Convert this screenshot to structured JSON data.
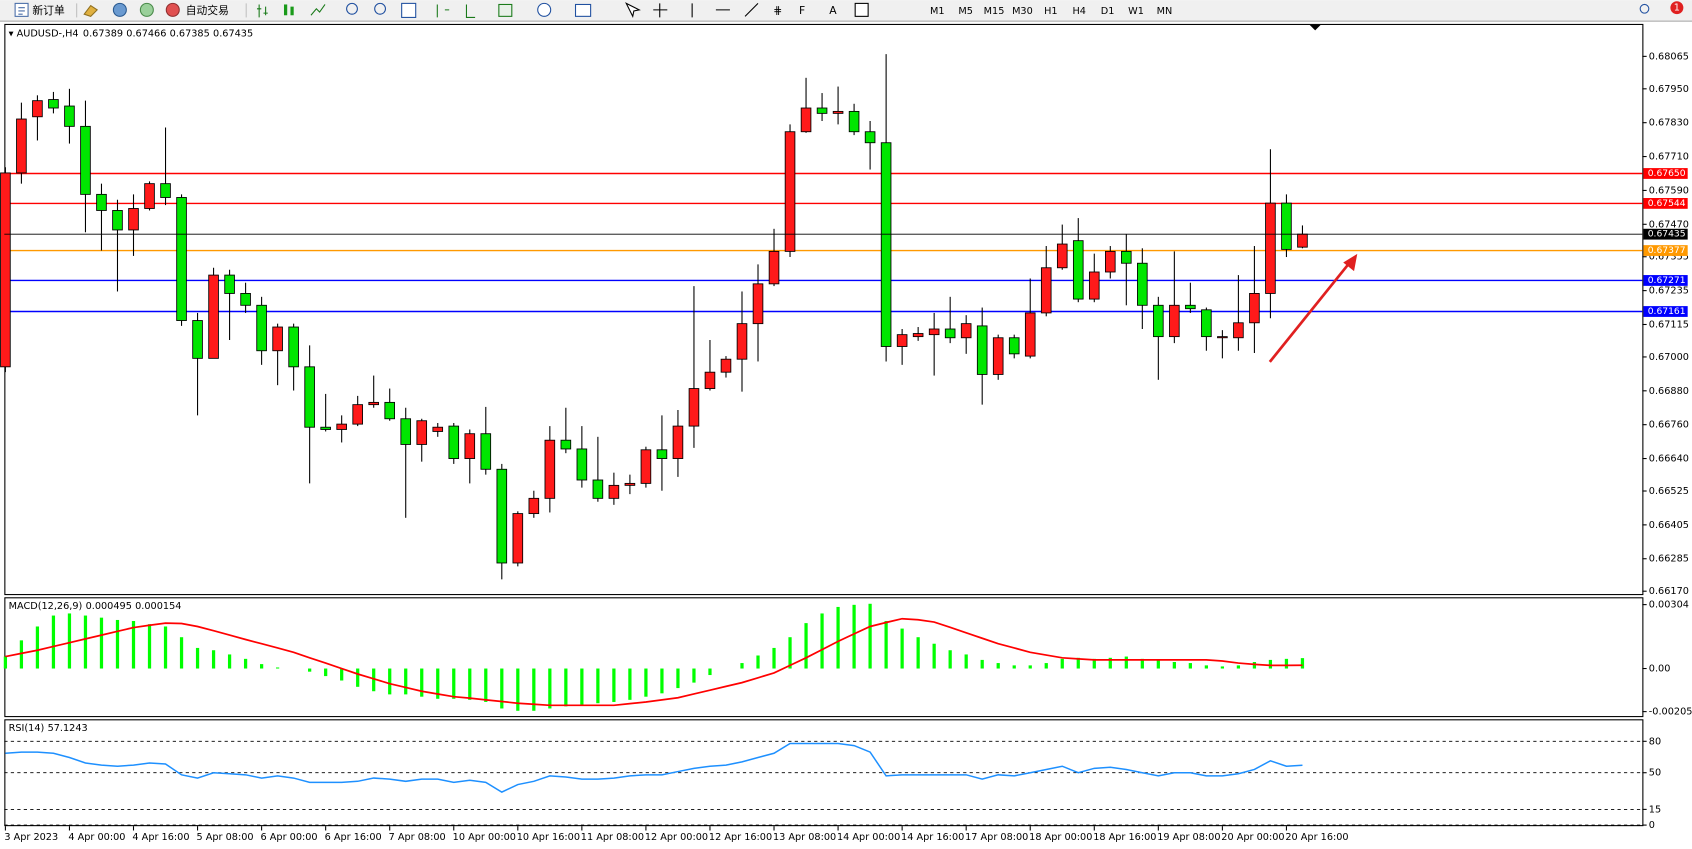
{
  "toolbar": {
    "new_order": "新订单",
    "auto_trading": "自动交易",
    "timeframes": [
      "M1",
      "M5",
      "M15",
      "M30",
      "H1",
      "H4",
      "D1",
      "W1",
      "MN"
    ],
    "badge": 1
  },
  "chart_data": [
    {
      "type": "candlestick",
      "title": "AUDUSD-,H4",
      "up_color": "#ff1a1a",
      "down_color": "#00e600",
      "categories": [
        "3 Apr 2023",
        null,
        null,
        null,
        "4 Apr 00:00",
        null,
        null,
        null,
        "4 Apr 16:00",
        null,
        null,
        null,
        "5 Apr 08:00",
        null,
        null,
        null,
        "6 Apr 00:00",
        null,
        null,
        null,
        "6 Apr 16:00",
        null,
        null,
        null,
        "7 Apr 08:00",
        null,
        null,
        null,
        "10 Apr 00:00",
        null,
        null,
        null,
        "10 Apr 16:00",
        null,
        null,
        null,
        "11 Apr 08:00",
        null,
        null,
        null,
        "12 Apr 00:00",
        null,
        null,
        null,
        "12 Apr 16:00",
        null,
        null,
        null,
        "13 Apr 08:00",
        null,
        null,
        null,
        "14 Apr 00:00",
        null,
        null,
        null,
        "14 Apr 16:00",
        null,
        null,
        null,
        "17 Apr 08:00",
        null,
        null,
        null,
        "18 Apr 00:00",
        null,
        null,
        null,
        "18 Apr 16:00",
        null,
        null,
        null,
        "19 Apr 08:00",
        null,
        null,
        null,
        "20 Apr 00:00",
        null,
        null,
        null,
        "20 Apr 16:00",
        null
      ],
      "ohlc": [
        [
          0.66965,
          0.67672,
          0.66946,
          0.67652
        ],
        [
          0.67652,
          0.67901,
          0.67614,
          0.67843
        ],
        [
          0.67851,
          0.67927,
          0.67767,
          0.67908
        ],
        [
          0.67912,
          0.67939,
          0.67863,
          0.67882
        ],
        [
          0.67889,
          0.6795,
          0.67756,
          0.67817
        ],
        [
          0.67817,
          0.67908,
          0.67442,
          0.67576
        ],
        [
          0.67576,
          0.67614,
          0.67377,
          0.67519
        ],
        [
          0.67519,
          0.67557,
          0.67232,
          0.6745
        ],
        [
          0.6745,
          0.67576,
          0.67358,
          0.67526
        ],
        [
          0.67526,
          0.67622,
          0.67519,
          0.67614
        ],
        [
          0.67614,
          0.67813,
          0.67538,
          0.67565
        ],
        [
          0.67565,
          0.67576,
          0.6711,
          0.67129
        ],
        [
          0.67129,
          0.67156,
          0.66793,
          0.66995
        ],
        [
          0.66995,
          0.67316,
          0.66995,
          0.6729
        ],
        [
          0.6729,
          0.67309,
          0.6706,
          0.67225
        ],
        [
          0.67225,
          0.67263,
          0.67156,
          0.67183
        ],
        [
          0.67183,
          0.67213,
          0.66972,
          0.67022
        ],
        [
          0.67022,
          0.67118,
          0.669,
          0.67106
        ],
        [
          0.67106,
          0.67118,
          0.66881,
          0.66965
        ],
        [
          0.66965,
          0.67041,
          0.66552,
          0.66751
        ],
        [
          0.66751,
          0.66869,
          0.66736,
          0.66743
        ],
        [
          0.66743,
          0.66793,
          0.66697,
          0.66762
        ],
        [
          0.66762,
          0.66862,
          0.66755,
          0.66831
        ],
        [
          0.66831,
          0.66934,
          0.6682,
          0.66839
        ],
        [
          0.66839,
          0.66888,
          0.66774,
          0.66781
        ],
        [
          0.66781,
          0.6682,
          0.6643,
          0.6669
        ],
        [
          0.6669,
          0.66781,
          0.66629,
          0.66774
        ],
        [
          0.66736,
          0.66766,
          0.66717,
          0.66751
        ],
        [
          0.66755,
          0.66766,
          0.66621,
          0.6664
        ],
        [
          0.6664,
          0.66743,
          0.66552,
          0.66728
        ],
        [
          0.66728,
          0.66823,
          0.66583,
          0.66602
        ],
        [
          0.66602,
          0.66621,
          0.66212,
          0.6627
        ],
        [
          0.6627,
          0.66453,
          0.66258,
          0.66445
        ],
        [
          0.66445,
          0.66526,
          0.6643,
          0.66499
        ],
        [
          0.66499,
          0.66755,
          0.66449,
          0.66705
        ],
        [
          0.66705,
          0.6682,
          0.66659,
          0.66674
        ],
        [
          0.66674,
          0.66755,
          0.66537,
          0.66564
        ],
        [
          0.66564,
          0.66717,
          0.66487,
          0.66499
        ],
        [
          0.66499,
          0.6659,
          0.66476,
          0.66545
        ],
        [
          0.66545,
          0.66583,
          0.66514,
          0.66552
        ],
        [
          0.66552,
          0.66682,
          0.66537,
          0.66671
        ],
        [
          0.66671,
          0.66793,
          0.66526,
          0.6664
        ],
        [
          0.6664,
          0.66812,
          0.66575,
          0.66755
        ],
        [
          0.66755,
          0.67251,
          0.66678,
          0.66888
        ],
        [
          0.66888,
          0.6706,
          0.66881,
          0.66946
        ],
        [
          0.66946,
          0.67003,
          0.66927,
          0.66992
        ],
        [
          0.66992,
          0.67232,
          0.66877,
          0.67118
        ],
        [
          0.67118,
          0.67328,
          0.66984,
          0.67259
        ],
        [
          0.67259,
          0.67454,
          0.67251,
          0.67374
        ],
        [
          0.67374,
          0.67824,
          0.67354,
          0.67798
        ],
        [
          0.67798,
          0.67989,
          0.67794,
          0.67882
        ],
        [
          0.67882,
          0.67935,
          0.67836,
          0.67863
        ],
        [
          0.67863,
          0.67958,
          0.67824,
          0.6787
        ],
        [
          0.6787,
          0.67897,
          0.67786,
          0.67798
        ],
        [
          0.67798,
          0.67836,
          0.67664,
          0.67759
        ],
        [
          0.67759,
          0.68073,
          0.66984,
          0.67037
        ],
        [
          0.67037,
          0.67099,
          0.66972,
          0.67079
        ],
        [
          0.67072,
          0.67106,
          0.67057,
          0.67083
        ],
        [
          0.67079,
          0.67156,
          0.66934,
          0.67099
        ],
        [
          0.67099,
          0.67213,
          0.67049,
          0.67068
        ],
        [
          0.67068,
          0.67148,
          0.67011,
          0.67118
        ],
        [
          0.6711,
          0.67175,
          0.66831,
          0.66938
        ],
        [
          0.66938,
          0.67079,
          0.66919,
          0.67068
        ],
        [
          0.67068,
          0.67079,
          0.66995,
          0.67011
        ],
        [
          0.67003,
          0.67278,
          0.66995,
          0.67156
        ],
        [
          0.67156,
          0.67393,
          0.67144,
          0.67316
        ],
        [
          0.67316,
          0.67469,
          0.67309,
          0.674
        ],
        [
          0.67412,
          0.67492,
          0.67194,
          0.67205
        ],
        [
          0.67205,
          0.67366,
          0.67194,
          0.67301
        ],
        [
          0.67301,
          0.67393,
          0.67278,
          0.67374
        ],
        [
          0.67374,
          0.67435,
          0.67183,
          0.67332
        ],
        [
          0.67332,
          0.67385,
          0.67099,
          0.67183
        ],
        [
          0.67183,
          0.67213,
          0.66919,
          0.67072
        ],
        [
          0.67072,
          0.67374,
          0.67049,
          0.67183
        ],
        [
          0.67183,
          0.67263,
          0.67156,
          0.67171
        ],
        [
          0.67167,
          0.67175,
          0.67022,
          0.67072
        ],
        [
          0.67068,
          0.67095,
          0.66995,
          0.67072
        ],
        [
          0.67068,
          0.6729,
          0.67022,
          0.67121
        ],
        [
          0.67121,
          0.67393,
          0.67014,
          0.67225
        ],
        [
          0.67225,
          0.67736,
          0.67137,
          0.67545
        ],
        [
          0.67545,
          0.67576,
          0.67354,
          0.67381
        ],
        [
          0.67389,
          0.67466,
          0.67385,
          0.67435
        ]
      ],
      "ylim": [
        0.6616,
        0.6818
      ],
      "yticks": [
        0.68065,
        {
          "value": 0.6795,
          "label": "0.67950"
        },
        {
          "value": 0.6783,
          "label": "0.67830"
        },
        {
          "value": 0.6771,
          "label": "0.67710"
        },
        {
          "value": 0.6759,
          "label": "0.67590"
        },
        {
          "value": 0.6747,
          "label": "0.67470"
        },
        0.67355,
        0.67235,
        0.67115,
        {
          "value": 0.67,
          "label": "0.67000"
        },
        {
          "value": 0.6688,
          "label": "0.66880"
        },
        {
          "value": 0.6676,
          "label": "0.66760"
        },
        {
          "value": 0.6664,
          "label": "0.66640"
        },
        0.66525,
        0.66405,
        0.66285,
        {
          "value": 0.6617,
          "label": "0.66170"
        }
      ],
      "levels": [
        {
          "value": 0.6765,
          "label": "0.67650",
          "color": "#ff0000"
        },
        {
          "value": 0.67544,
          "color": "#ff0000"
        },
        {
          "value": 0.67377,
          "color": "#ff9900"
        },
        {
          "value": 0.67271,
          "color": "#0000ff"
        },
        {
          "value": 0.67161,
          "color": "#0000ff"
        }
      ],
      "bid_color": "#000000"
    },
    {
      "type": "macd",
      "title": "MACD(12,26,9)",
      "series": [
        {
          "type": "bar",
          "color": "#00ff00",
          "values": [
            0.00057,
            0.00134,
            0.002,
            0.00252,
            0.00262,
            0.00252,
            0.00242,
            0.00231,
            0.00226,
            0.00211,
            0.002,
            0.00149,
            0.00098,
            0.00087,
            0.00067,
            0.00046,
            0.00021,
            5e-05,
            0,
            -0.00015,
            -0.00036,
            -0.00057,
            -0.00087,
            -0.00108,
            -0.00123,
            -0.00123,
            -0.00134,
            -0.00144,
            -0.00144,
            -0.00149,
            -0.00159,
            -0.0019,
            -0.00201,
            -0.00201,
            -0.0019,
            -0.0018,
            -0.00175,
            -0.00165,
            -0.00159,
            -0.00149,
            -0.00134,
            -0.00118,
            -0.00093,
            -0.00067,
            -0.00031,
            0,
            0.00026,
            0.00062,
            0.00098,
            0.00149,
            0.00216,
            0.00262,
            0.00293,
            0.00303,
            0.00308,
            0.00226,
            0.0019,
            0.00149,
            0.00118,
            0.00087,
            0.00067,
            0.00041,
            0.00026,
            0.00015,
            0.00015,
            0.00026,
            0.00046,
            0.00051,
            0.00046,
            0.00051,
            0.00057,
            0.00046,
            0.00041,
            0.00031,
            0.00026,
            0.00015,
            0.0001,
            0.00015,
            0.00031,
            0.00041,
            0.00046,
            0.000495
          ]
        },
        {
          "type": "line",
          "color": "#ff0000",
          "values": [
            0.00057,
            0.00072,
            0.00087,
            0.00105,
            0.00123,
            0.00141,
            0.00159,
            0.00177,
            0.00195,
            0.00206,
            0.00216,
            0.00214,
            0.002,
            0.0018,
            0.00159,
            0.00138,
            0.00118,
            0.00098,
            0.00077,
            0.00051,
            0.00026,
            0,
            -0.00026,
            -0.00049,
            -0.00072,
            -0.0009,
            -0.00108,
            -0.00121,
            -0.00134,
            -0.00141,
            -0.00149,
            -0.00157,
            -0.00165,
            -0.0017,
            -0.00175,
            -0.00175,
            -0.00175,
            -0.00175,
            -0.00175,
            -0.00167,
            -0.00159,
            -0.00149,
            -0.00139,
            -0.00121,
            -0.00103,
            -0.00085,
            -0.00067,
            -0.00044,
            -0.00021,
            0.00015,
            0.00051,
            0.0009,
            0.00129,
            0.00165,
            0.002,
            0.00219,
            0.00237,
            0.00232,
            0.00221,
            0.00196,
            0.0017,
            0.00144,
            0.00118,
            0.00098,
            0.00077,
            0.00064,
            0.00051,
            0.00046,
            0.00041,
            0.00041,
            0.00041,
            0.00041,
            0.00041,
            0.00041,
            0.00041,
            0.00041,
            0.00036,
            0.00026,
            0.0002,
            0.00015,
            0.00015,
            0.000154
          ]
        }
      ],
      "ylim": [
        -0.00226,
        0.00339
      ],
      "yticks": [
        0.00304,
        {
          "value": 0,
          "label": "0.00"
        },
        -0.00205
      ]
    },
    {
      "type": "line",
      "title": "RSI(14)",
      "color": "#1e90ff",
      "values": [
        68.6,
        69.7,
        69.7,
        68.6,
        64.5,
        59.3,
        57.3,
        56.2,
        57.3,
        59.3,
        58.3,
        48,
        44.9,
        50,
        49,
        48,
        44.9,
        47,
        44.9,
        40.8,
        40.8,
        40.8,
        41.8,
        44.9,
        43.9,
        41.8,
        43.9,
        43.9,
        40.8,
        42.8,
        40.8,
        31.5,
        38.7,
        41.8,
        47,
        45.9,
        43.9,
        43.9,
        44.9,
        47,
        48,
        48,
        51.1,
        54.2,
        56.2,
        57.3,
        60.4,
        64.5,
        68.6,
        77.9,
        77.9,
        77.9,
        77.9,
        75.9,
        69.7,
        47,
        48,
        48,
        48,
        48,
        48,
        43.9,
        48,
        47,
        50,
        53.1,
        56.2,
        50,
        54.2,
        55.2,
        53.1,
        50,
        47,
        50,
        50,
        47,
        47,
        49,
        53.1,
        61.4,
        56.2,
        57.1243
      ],
      "ylim": [
        0,
        100
      ],
      "yticks": [
        80,
        50,
        15,
        0
      ],
      "grid": "dashed"
    }
  ]
}
